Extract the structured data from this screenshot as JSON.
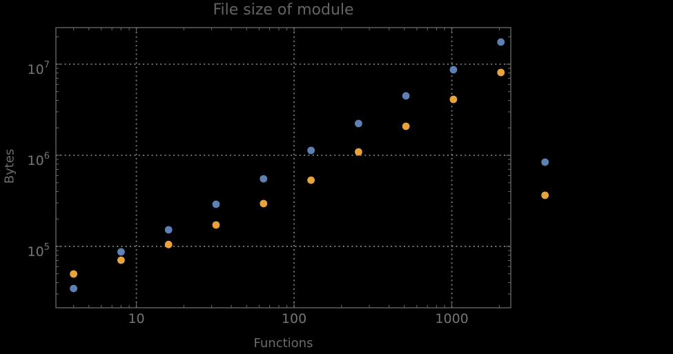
{
  "page": {
    "background": "#000000"
  },
  "chart_data": {
    "type": "scatter",
    "title": "File size of module",
    "xlabel": "Functions",
    "ylabel": "Bytes",
    "x_scale": "log",
    "y_scale": "log",
    "xlim": [
      3.09,
      2365
    ],
    "ylim": [
      21200,
      25200000
    ],
    "grid": "dotted",
    "legend": "none",
    "x_ticks": [
      {
        "value": 10,
        "label": "10"
      },
      {
        "value": 100,
        "label": "100"
      },
      {
        "value": 1000,
        "label": "1000"
      }
    ],
    "y_ticks": [
      {
        "value": 100000,
        "base": "10",
        "exponent": "5"
      },
      {
        "value": 1000000,
        "base": "10",
        "exponent": "6"
      },
      {
        "value": 10000000,
        "base": "10",
        "exponent": "7"
      }
    ],
    "colors": {
      "background": "#000000",
      "frame": "#6c6c6c",
      "grid": "#7f7f7f",
      "tick_label": "#757575",
      "title": "#636363",
      "axis_label": "#6b6b6b",
      "series_blue": "#5e81b5",
      "series_orange": "#e8a33d"
    },
    "point_radius": 5.4,
    "x": [
      4,
      8,
      16,
      32,
      64,
      128,
      256,
      512,
      1024,
      2048,
      3900
    ],
    "series": [
      {
        "name": "blue-points",
        "color": "#5e81b5",
        "values": [
          34500,
          87000,
          152000,
          290000,
          552000,
          1130000,
          2230000,
          4490000,
          8690000,
          17500000,
          841000
        ]
      },
      {
        "name": "orange-points",
        "color": "#e8a33d",
        "values": [
          49800,
          70500,
          105000,
          172000,
          295000,
          533000,
          1090000,
          2080000,
          4110000,
          8110000,
          364000
        ]
      }
    ]
  }
}
